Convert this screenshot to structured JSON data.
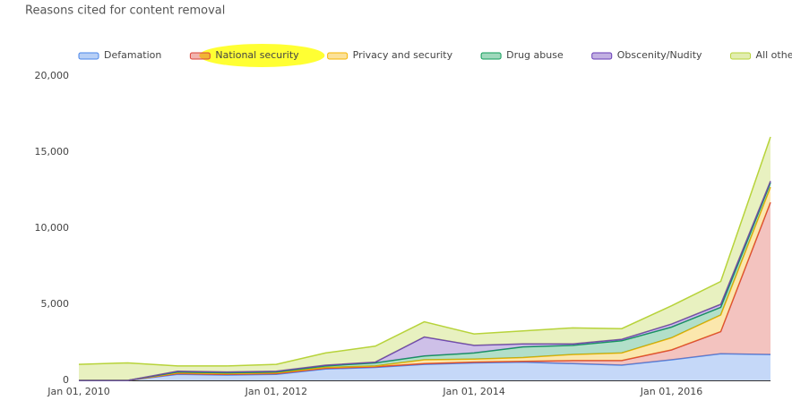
{
  "chart_data": {
    "type": "stacked_area",
    "title": "Reasons cited for content removal",
    "x": [
      "2010-01-01",
      "2010-07-01",
      "2011-01-01",
      "2011-07-01",
      "2012-01-01",
      "2012-07-01",
      "2013-01-01",
      "2013-07-01",
      "2014-01-01",
      "2014-07-01",
      "2015-01-01",
      "2015-07-01",
      "2016-01-01",
      "2016-07-01",
      "2017-01-01"
    ],
    "xlim": [
      "2010-01-01",
      "2017-01-01"
    ],
    "xticks": [
      {
        "value": "2010-01-01",
        "label": "Jan 01, 2010"
      },
      {
        "value": "2012-01-01",
        "label": "Jan 01, 2012"
      },
      {
        "value": "2014-01-01",
        "label": "Jan 01, 2014"
      },
      {
        "value": "2016-01-01",
        "label": "Jan 01, 2016"
      }
    ],
    "ylim": [
      0,
      20000
    ],
    "yticks": [
      0,
      {
        "value": 5000,
        "label": "5,000"
      },
      {
        "value": 10000,
        "label": "10,000"
      },
      {
        "value": 15000,
        "label": "15,000"
      },
      {
        "value": 20000,
        "label": "20,000"
      }
    ],
    "grid": false,
    "legend": "top",
    "series": [
      {
        "name": "Defamation",
        "color": "#4a86e8",
        "values": [
          0,
          0,
          400,
          350,
          400,
          750,
          850,
          1050,
          1150,
          1200,
          1100,
          1000,
          1350,
          1750,
          1700
        ]
      },
      {
        "name": "National security",
        "color": "#db4437",
        "values": [
          0,
          0,
          50,
          50,
          50,
          50,
          50,
          50,
          50,
          50,
          200,
          300,
          650,
          1450,
          10000
        ]
      },
      {
        "name": "Privacy and security",
        "color": "#f4b400",
        "values": [
          0,
          0,
          50,
          50,
          50,
          50,
          50,
          250,
          200,
          250,
          400,
          500,
          800,
          1100,
          1000
        ]
      },
      {
        "name": "Drug abuse",
        "color": "#0f9d58",
        "values": [
          0,
          0,
          50,
          50,
          50,
          100,
          200,
          250,
          400,
          700,
          600,
          800,
          700,
          500,
          300
        ]
      },
      {
        "name": "Obscenity/Nudity",
        "color": "#673ab7",
        "values": [
          0,
          0,
          50,
          50,
          50,
          50,
          50,
          1250,
          500,
          200,
          100,
          100,
          200,
          200,
          100
        ]
      },
      {
        "name": "All others",
        "color": "#b7d33a",
        "values": [
          1050,
          1150,
          350,
          400,
          450,
          800,
          1050,
          1000,
          750,
          850,
          1050,
          700,
          1200,
          1500,
          2900
        ]
      }
    ]
  }
}
